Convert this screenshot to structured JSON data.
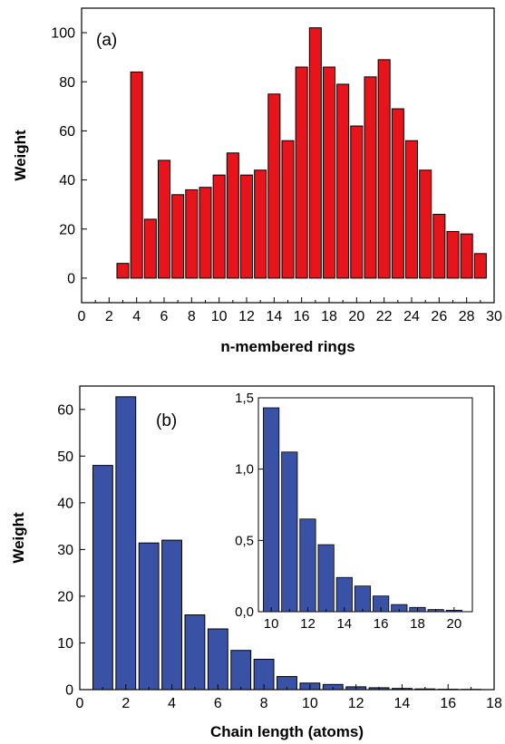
{
  "chart_data": [
    {
      "type": "bar",
      "panel_label": "(a)",
      "xlabel": "n-membered rings",
      "ylabel": "Weight",
      "xlim": [
        0,
        30
      ],
      "ylim": [
        -10,
        110
      ],
      "x_ticks": [
        0,
        2,
        4,
        6,
        8,
        10,
        12,
        14,
        16,
        18,
        20,
        22,
        24,
        26,
        28,
        30
      ],
      "y_ticks": [
        0,
        20,
        40,
        60,
        80,
        100
      ],
      "color": "#e8141c",
      "x": [
        3,
        4,
        5,
        6,
        7,
        8,
        9,
        10,
        11,
        12,
        13,
        14,
        15,
        16,
        17,
        18,
        19,
        20,
        21,
        22,
        23,
        24,
        25,
        26,
        27,
        28,
        29
      ],
      "values": [
        6,
        84,
        24,
        48,
        34,
        36,
        37,
        42,
        51,
        42,
        44,
        75,
        56,
        86,
        102,
        86,
        79,
        62,
        82,
        89,
        69,
        56,
        44,
        26,
        19,
        18,
        10
      ],
      "grid": false
    },
    {
      "type": "bar",
      "panel_label": "(b)",
      "xlabel": "Chain length (atoms)",
      "ylabel": "Weight",
      "xlim": [
        0,
        18
      ],
      "ylim": [
        0,
        65
      ],
      "x_ticks": [
        0,
        2,
        4,
        6,
        8,
        10,
        12,
        14,
        16,
        18
      ],
      "y_ticks": [
        0,
        10,
        20,
        30,
        40,
        50,
        60
      ],
      "color": "#3a52a6",
      "x": [
        1,
        2,
        3,
        4,
        5,
        6,
        7,
        8,
        9,
        10,
        11,
        12,
        13,
        14,
        15,
        16,
        17
      ],
      "values": [
        48,
        62.7,
        31.4,
        32,
        16,
        13,
        8.4,
        6.5,
        2.8,
        1.4,
        1.1,
        0.6,
        0.4,
        0.25,
        0.15,
        0.08,
        0.05
      ],
      "grid": false,
      "inset": {
        "type": "bar",
        "xlim": [
          9.3,
          21
        ],
        "ylim": [
          0,
          1.5
        ],
        "x_ticks": [
          "10",
          "12",
          "14",
          "16",
          "18",
          "20"
        ],
        "x_tick_values": [
          10,
          12,
          14,
          16,
          18,
          20
        ],
        "y_ticks": [
          "0,0",
          "0,5",
          "1,0",
          "1,5"
        ],
        "y_tick_values": [
          0,
          0.5,
          1.0,
          1.5
        ],
        "x": [
          10,
          11,
          12,
          13,
          14,
          15,
          16,
          17,
          18,
          19,
          20
        ],
        "values": [
          1.43,
          1.12,
          0.65,
          0.47,
          0.24,
          0.18,
          0.11,
          0.05,
          0.03,
          0.015,
          0.01
        ]
      }
    }
  ]
}
